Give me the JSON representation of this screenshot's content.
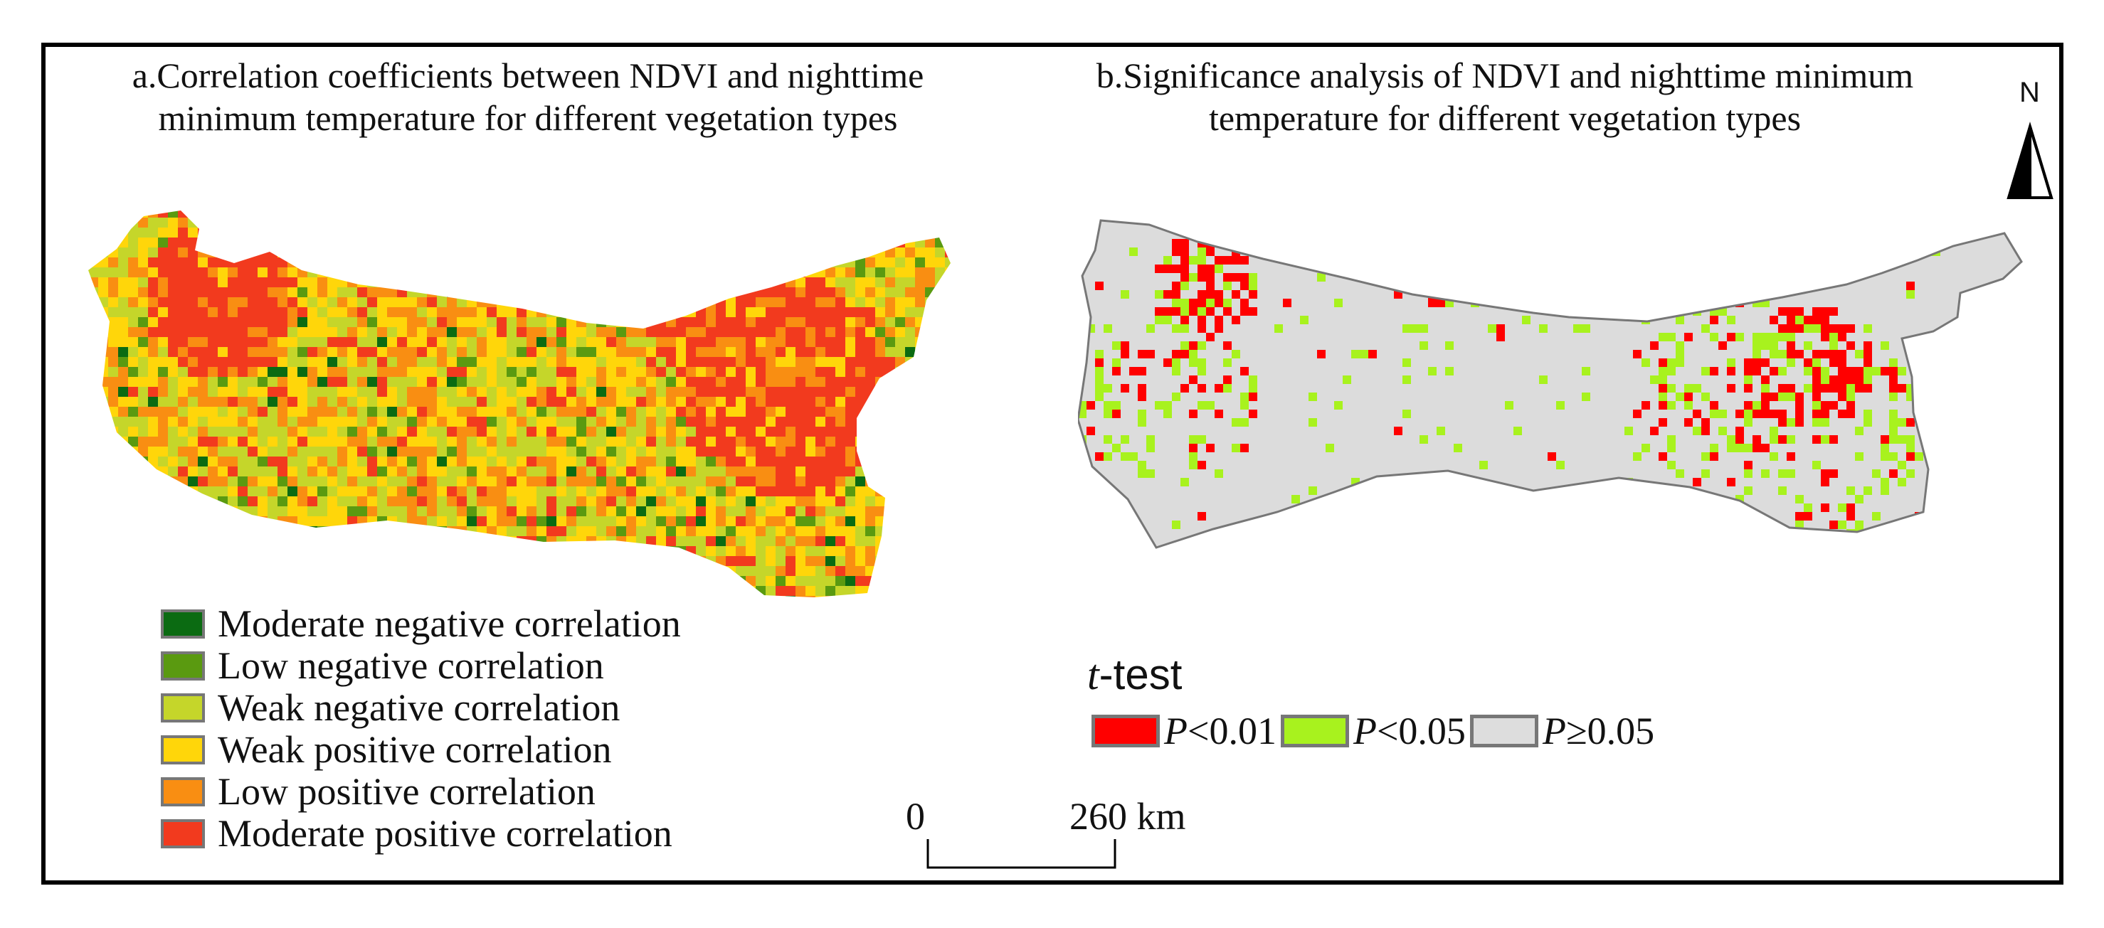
{
  "panel_a": {
    "title_line1": "a.Correlation coefficients between NDVI and nighttime",
    "title_line2": "minimum temperature for different vegetation types",
    "legend": [
      {
        "label": "Moderate negative correlation",
        "color": "#0b6b12"
      },
      {
        "label": "Low negative correlation",
        "color": "#5a9a10"
      },
      {
        "label": "Weak negative correlation",
        "color": "#c5d62a"
      },
      {
        "label": "Weak positive correlation",
        "color": "#ffd60a"
      },
      {
        "label": "Low positive correlation",
        "color": "#f98e12"
      },
      {
        "label": "Moderate positive correlation",
        "color": "#f23a1e"
      }
    ]
  },
  "panel_b": {
    "title_line1": "b.Significance analysis of NDVI and nighttime minimum",
    "title_line2": "temperature for different vegetation types",
    "legend_title_italic": "t",
    "legend_title_rest": "-test",
    "legend": [
      {
        "italic": "P",
        "text": "<0.01",
        "color": "#ff0000"
      },
      {
        "italic": "P",
        "text": "<0.05",
        "color": "#a8f21e"
      },
      {
        "italic": "P",
        "text": "≥0.05",
        "color": "#dddddd"
      }
    ],
    "region_fill": "#dcdcdc",
    "region_stroke": "#777777"
  },
  "north_arrow": {
    "label": "N"
  },
  "scale_bar": {
    "start_label": "0",
    "end_label": "260 km"
  }
}
